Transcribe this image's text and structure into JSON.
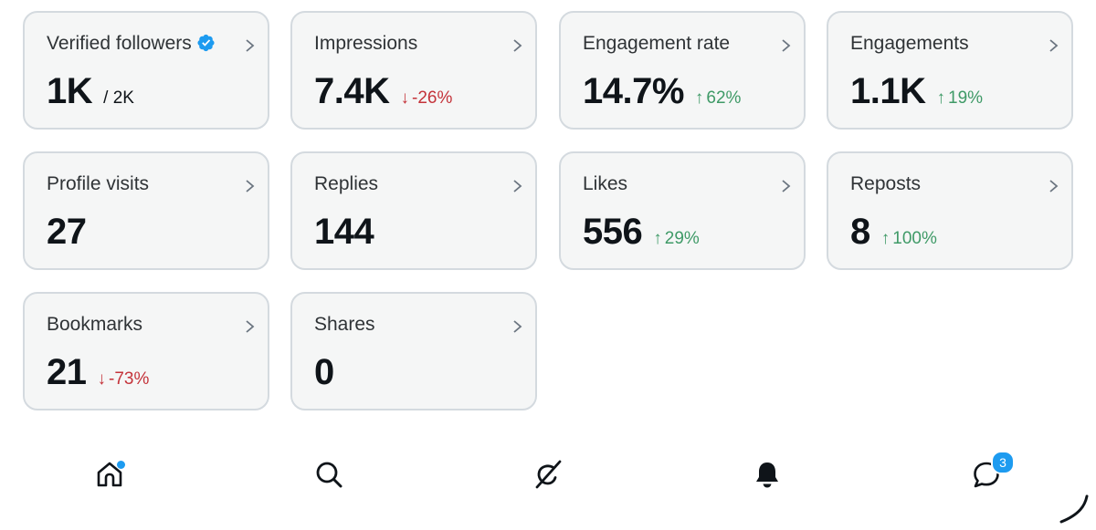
{
  "cards": {
    "verified_followers": {
      "label": "Verified followers",
      "value": "1K",
      "sub": "/ 2K"
    },
    "impressions": {
      "label": "Impressions",
      "value": "7.4K",
      "delta": "-26%",
      "direction": "down"
    },
    "engagement_rate": {
      "label": "Engagement rate",
      "value": "14.7%",
      "delta": "62%",
      "direction": "up"
    },
    "engagements": {
      "label": "Engagements",
      "value": "1.1K",
      "delta": "19%",
      "direction": "up"
    },
    "profile_visits": {
      "label": "Profile visits",
      "value": "27"
    },
    "replies": {
      "label": "Replies",
      "value": "144"
    },
    "likes": {
      "label": "Likes",
      "value": "556",
      "delta": "29%",
      "direction": "up"
    },
    "reposts": {
      "label": "Reposts",
      "value": "8",
      "delta": "100%",
      "direction": "up"
    },
    "bookmarks": {
      "label": "Bookmarks",
      "value": "21",
      "delta": "-73%",
      "direction": "down"
    },
    "shares": {
      "label": "Shares",
      "value": "0"
    }
  },
  "nav": {
    "items": [
      {
        "icon": "home-icon",
        "has_dot": true
      },
      {
        "icon": "search-icon"
      },
      {
        "icon": "grok-icon"
      },
      {
        "icon": "bell-icon"
      },
      {
        "icon": "messages-icon",
        "badge": "3"
      }
    ]
  },
  "colors": {
    "card_bg": "#f5f6f6",
    "card_border": "#d4dadf",
    "up": "#3f9a67",
    "down": "#c4333a",
    "accent": "#1d9bf0",
    "text": "#0f1419"
  }
}
